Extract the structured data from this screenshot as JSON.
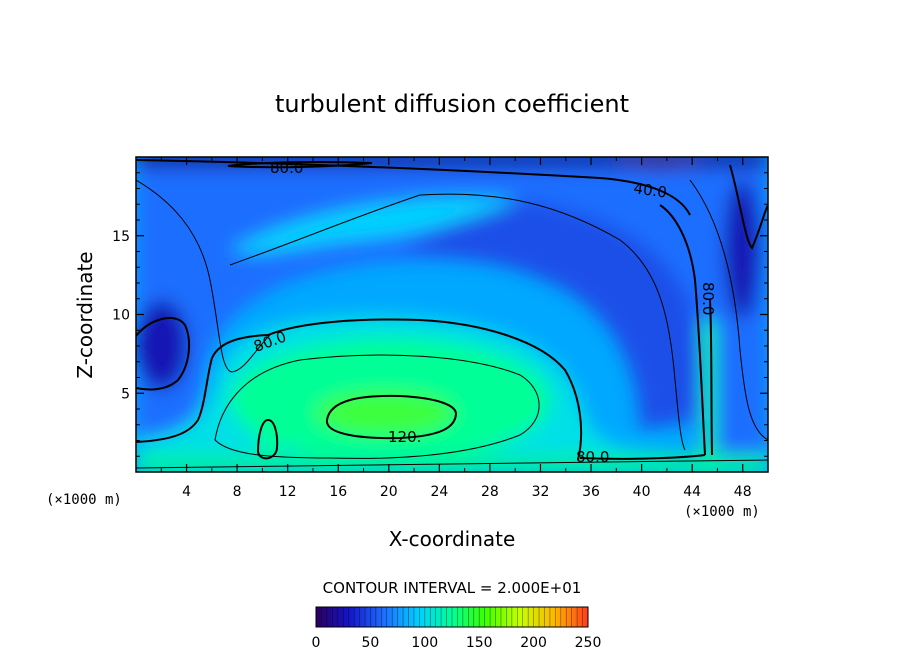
{
  "chart_data": {
    "type": "heatmap",
    "title": "turbulent diffusion coefficient",
    "xlabel": "X-coordinate",
    "ylabel": "Z-coordinate",
    "x_unit": "(×1000 m)",
    "y_unit": "(×1000 m)",
    "xlim": [
      0,
      50
    ],
    "ylim": [
      0,
      20
    ],
    "x_ticks": [
      4,
      8,
      12,
      16,
      20,
      24,
      28,
      32,
      36,
      40,
      44,
      48
    ],
    "y_ticks": [
      5,
      10,
      15
    ],
    "contour_interval_text": "CONTOUR INTERVAL = 2.000E+01",
    "contour_labels": [
      {
        "text": "80.0",
        "x": 11.5,
        "z": 19.3
      },
      {
        "text": "40.0",
        "x": 41.0,
        "z": 18.0
      },
      {
        "text": "80.0",
        "x": 43.8,
        "z": 11.0,
        "rotated": true
      },
      {
        "text": "80.0",
        "x": 11.0,
        "z": 8.2
      },
      {
        "text": "120.",
        "x": 21.5,
        "z": 2.3
      },
      {
        "text": "80.0",
        "x": 36.0,
        "z": 1.0
      }
    ],
    "colorbar": {
      "min": 0,
      "max": 250,
      "tick_labels": [
        "0",
        "50",
        "100",
        "150",
        "200",
        "250"
      ],
      "colors": [
        "#2a0060",
        "#1414c8",
        "#1e6eff",
        "#00d2ff",
        "#00ff96",
        "#3cff00",
        "#c8ff00",
        "#ffb400",
        "#ff3c1e"
      ]
    },
    "field_description": "Heatmap of diffusion coefficient over X (0-50 km) and Z (0-20 km); values ~20-130, maximum (>120) near x=16-24, z=3-4; minima (<40) near top boundary and left edge around z=8."
  }
}
